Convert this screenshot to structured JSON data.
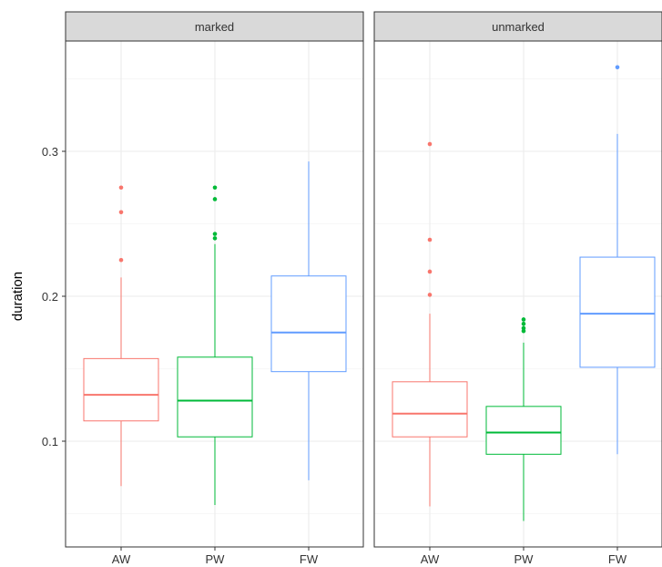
{
  "chart_data": {
    "type": "boxplot",
    "ylabel": "duration",
    "xlabel": "",
    "categories": [
      "AW",
      "PW",
      "FW"
    ],
    "ylim": [
      0.03,
      0.37
    ],
    "y_ticks": [
      "0.1",
      "0.2",
      "0.3"
    ],
    "grid": true,
    "colors": {
      "AW": "#F8766D",
      "PW": "#00BA38",
      "FW": "#619CFF"
    },
    "panels": [
      {
        "label": "marked",
        "boxes": [
          {
            "category": "AW",
            "whisker_low": 0.069,
            "q1": 0.114,
            "median": 0.132,
            "q3": 0.157,
            "whisker_high": 0.213,
            "outliers": [
              0.225,
              0.258,
              0.275
            ]
          },
          {
            "category": "PW",
            "whisker_low": 0.056,
            "q1": 0.103,
            "median": 0.128,
            "q3": 0.158,
            "whisker_high": 0.236,
            "outliers": [
              0.24,
              0.243,
              0.267,
              0.275
            ]
          },
          {
            "category": "FW",
            "whisker_low": 0.073,
            "q1": 0.148,
            "median": 0.175,
            "q3": 0.214,
            "whisker_high": 0.293,
            "outliers": []
          }
        ]
      },
      {
        "label": "unmarked",
        "boxes": [
          {
            "category": "AW",
            "whisker_low": 0.055,
            "q1": 0.103,
            "median": 0.119,
            "q3": 0.141,
            "whisker_high": 0.188,
            "outliers": [
              0.201,
              0.217,
              0.239,
              0.305
            ]
          },
          {
            "category": "PW",
            "whisker_low": 0.045,
            "q1": 0.091,
            "median": 0.106,
            "q3": 0.124,
            "whisker_high": 0.168,
            "outliers": [
              0.176,
              0.178,
              0.181,
              0.184
            ]
          },
          {
            "category": "FW",
            "whisker_low": 0.091,
            "q1": 0.151,
            "median": 0.188,
            "q3": 0.227,
            "whisker_high": 0.312,
            "outliers": [
              0.358
            ]
          }
        ]
      }
    ]
  }
}
